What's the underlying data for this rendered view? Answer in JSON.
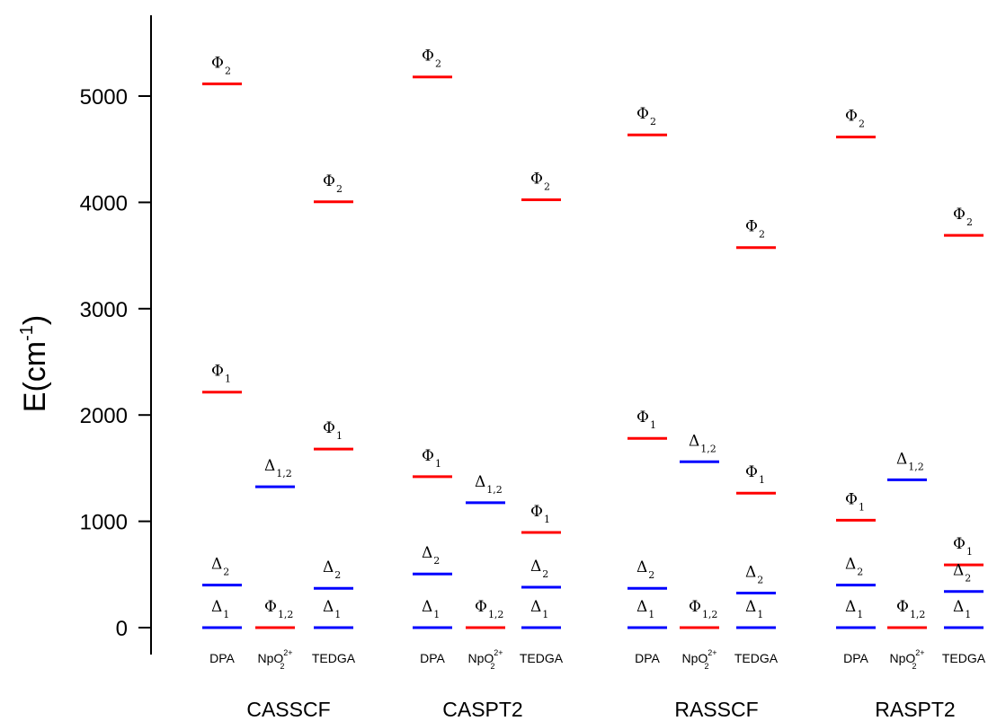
{
  "chart_data": {
    "type": "scatter",
    "ylabel": "E(cm",
    "ylabel_sup": "-1",
    "ylim": [
      0,
      5700
    ],
    "yticks": [
      0,
      1000,
      2000,
      3000,
      4000,
      5000
    ],
    "categories": [
      {
        "name": "DPA"
      },
      {
        "name": "NpO",
        "sup": "2+",
        "sub": "2"
      },
      {
        "name": "TEDGA"
      }
    ],
    "colors": {
      "Phi": "#ff0000",
      "Delta": "#0000ff"
    },
    "methods": [
      {
        "name": "CASSCF",
        "levels": [
          {
            "cat": 0,
            "sym": "Φ",
            "sub": "2",
            "value": 5115,
            "state": "Phi"
          },
          {
            "cat": 0,
            "sym": "Φ",
            "sub": "1",
            "value": 2215,
            "state": "Phi"
          },
          {
            "cat": 0,
            "sym": "Δ",
            "sub": "2",
            "value": 400,
            "state": "Delta"
          },
          {
            "cat": 0,
            "sym": "Δ",
            "sub": "1",
            "value": 0,
            "state": "Delta"
          },
          {
            "cat": 1,
            "sym": "Δ",
            "sub": "1,2",
            "value": 1325,
            "state": "Delta"
          },
          {
            "cat": 1,
            "sym": "Φ",
            "sub": "1,2",
            "value": 0,
            "state": "Phi"
          },
          {
            "cat": 2,
            "sym": "Φ",
            "sub": "2",
            "value": 4005,
            "state": "Phi"
          },
          {
            "cat": 2,
            "sym": "Φ",
            "sub": "1",
            "value": 1680,
            "state": "Phi"
          },
          {
            "cat": 2,
            "sym": "Δ",
            "sub": "2",
            "value": 370,
            "state": "Delta"
          },
          {
            "cat": 2,
            "sym": "Δ",
            "sub": "1",
            "value": 0,
            "state": "Delta"
          }
        ]
      },
      {
        "name": "CASPT2",
        "levels": [
          {
            "cat": 0,
            "sym": "Φ",
            "sub": "2",
            "value": 5180,
            "state": "Phi"
          },
          {
            "cat": 0,
            "sym": "Φ",
            "sub": "1",
            "value": 1420,
            "state": "Phi"
          },
          {
            "cat": 0,
            "sym": "Δ",
            "sub": "2",
            "value": 505,
            "state": "Delta"
          },
          {
            "cat": 0,
            "sym": "Δ",
            "sub": "1",
            "value": 0,
            "state": "Delta"
          },
          {
            "cat": 1,
            "sym": "Δ",
            "sub": "1,2",
            "value": 1175,
            "state": "Delta"
          },
          {
            "cat": 1,
            "sym": "Φ",
            "sub": "1,2",
            "value": 0,
            "state": "Phi"
          },
          {
            "cat": 2,
            "sym": "Φ",
            "sub": "2",
            "value": 4025,
            "state": "Phi"
          },
          {
            "cat": 2,
            "sym": "Φ",
            "sub": "1",
            "value": 895,
            "state": "Phi"
          },
          {
            "cat": 2,
            "sym": "Δ",
            "sub": "2",
            "value": 380,
            "state": "Delta"
          },
          {
            "cat": 2,
            "sym": "Δ",
            "sub": "1",
            "value": 0,
            "state": "Delta"
          }
        ]
      },
      {
        "name": "RASSCF",
        "levels": [
          {
            "cat": 0,
            "sym": "Φ",
            "sub": "2",
            "value": 4635,
            "state": "Phi"
          },
          {
            "cat": 0,
            "sym": "Φ",
            "sub": "1",
            "value": 1780,
            "state": "Phi"
          },
          {
            "cat": 0,
            "sym": "Δ",
            "sub": "2",
            "value": 370,
            "state": "Delta"
          },
          {
            "cat": 0,
            "sym": "Δ",
            "sub": "1",
            "value": 0,
            "state": "Delta"
          },
          {
            "cat": 1,
            "sym": "Δ",
            "sub": "1,2",
            "value": 1560,
            "state": "Delta"
          },
          {
            "cat": 1,
            "sym": "Φ",
            "sub": "1,2",
            "value": 0,
            "state": "Phi"
          },
          {
            "cat": 2,
            "sym": "Φ",
            "sub": "2",
            "value": 3575,
            "state": "Phi"
          },
          {
            "cat": 2,
            "sym": "Φ",
            "sub": "1",
            "value": 1265,
            "state": "Phi"
          },
          {
            "cat": 2,
            "sym": "Δ",
            "sub": "2",
            "value": 325,
            "state": "Delta"
          },
          {
            "cat": 2,
            "sym": "Δ",
            "sub": "1",
            "value": 0,
            "state": "Delta"
          }
        ]
      },
      {
        "name": "RASPT2",
        "levels": [
          {
            "cat": 0,
            "sym": "Φ",
            "sub": "2",
            "value": 4615,
            "state": "Phi"
          },
          {
            "cat": 0,
            "sym": "Φ",
            "sub": "1",
            "value": 1010,
            "state": "Phi"
          },
          {
            "cat": 0,
            "sym": "Δ",
            "sub": "2",
            "value": 400,
            "state": "Delta"
          },
          {
            "cat": 0,
            "sym": "Δ",
            "sub": "1",
            "value": 0,
            "state": "Delta"
          },
          {
            "cat": 1,
            "sym": "Δ",
            "sub": "1,2",
            "value": 1390,
            "state": "Delta"
          },
          {
            "cat": 1,
            "sym": "Φ",
            "sub": "1,2",
            "value": 0,
            "state": "Phi"
          },
          {
            "cat": 2,
            "sym": "Φ",
            "sub": "2",
            "value": 3690,
            "state": "Phi"
          },
          {
            "cat": 2,
            "sym": "Φ",
            "sub": "1",
            "value": 590,
            "state": "Phi"
          },
          {
            "cat": 2,
            "sym": "Δ",
            "sub": "2",
            "value": 340,
            "state": "Delta"
          },
          {
            "cat": 2,
            "sym": "Δ",
            "sub": "1",
            "value": 0,
            "state": "Delta"
          }
        ]
      }
    ]
  }
}
